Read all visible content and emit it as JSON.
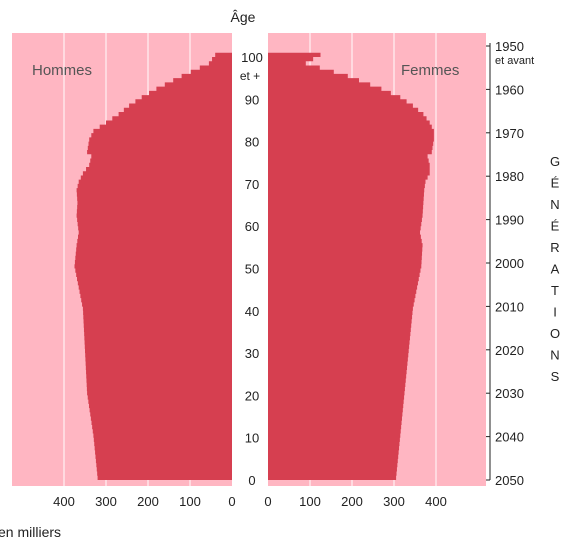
{
  "chart_data": {
    "type": "bar",
    "subtype": "population-pyramid",
    "colors": {
      "background": "#ffb6c2",
      "bars": "#d63f50",
      "grid": "#ffffff"
    },
    "age_axis": {
      "label": "Âge",
      "ticks": [
        "0",
        "10",
        "20",
        "30",
        "40",
        "50",
        "60",
        "70",
        "80",
        "90",
        "100"
      ],
      "top_label": "et +"
    },
    "x_axis_unit_label": "en milliers",
    "panels": {
      "hommes": {
        "name": "Hommes",
        "x_ticks": [
          "400",
          "300",
          "200",
          "100",
          "0"
        ],
        "xlim": [
          0,
          480
        ]
      },
      "femmes": {
        "name": "Femmes",
        "x_ticks": [
          "0",
          "100",
          "200",
          "300",
          "400"
        ],
        "xlim": [
          0,
          480
        ]
      }
    },
    "generations_axis": {
      "ticks": [
        "1950",
        "1960",
        "1970",
        "1980",
        "1990",
        "2000",
        "2010",
        "2020",
        "2030",
        "2040",
        "2050"
      ],
      "first_tick_suffix": "et avant",
      "title_letters": [
        "G",
        "É",
        "N",
        "É",
        "R",
        "A",
        "T",
        "I",
        "O",
        "N",
        "S"
      ]
    },
    "series": [
      {
        "name": "Hommes",
        "age_points": [
          0,
          10,
          20,
          30,
          40,
          45,
          50,
          55,
          58,
          62,
          65,
          68,
          70,
          72,
          74,
          76,
          77,
          80,
          82,
          84,
          86,
          88,
          90,
          92,
          95,
          98,
          100
        ],
        "values": [
          320,
          330,
          345,
          350,
          355,
          365,
          375,
          370,
          365,
          370,
          368,
          370,
          365,
          355,
          340,
          335,
          345,
          340,
          330,
          300,
          270,
          245,
          215,
          180,
          120,
          55,
          40
        ]
      },
      {
        "name": "Femmes",
        "age_points": [
          0,
          10,
          20,
          30,
          40,
          45,
          50,
          55,
          58,
          62,
          65,
          68,
          70,
          72,
          74,
          76,
          77,
          80,
          82,
          84,
          86,
          88,
          90,
          92,
          95,
          98,
          100
        ],
        "values": [
          305,
          315,
          325,
          335,
          345,
          355,
          365,
          368,
          362,
          368,
          370,
          372,
          375,
          385,
          385,
          380,
          390,
          395,
          395,
          385,
          370,
          345,
          315,
          270,
          190,
          90,
          125
        ]
      }
    ]
  }
}
